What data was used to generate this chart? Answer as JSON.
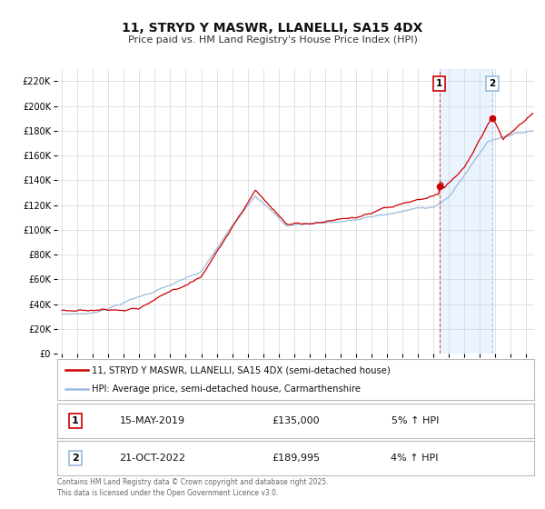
{
  "title": "11, STRYD Y MASWR, LLANELLI, SA15 4DX",
  "subtitle": "Price paid vs. HM Land Registry's House Price Index (HPI)",
  "legend_property": "11, STRYD Y MASWR, LLANELLI, SA15 4DX (semi-detached house)",
  "legend_hpi": "HPI: Average price, semi-detached house, Carmarthenshire",
  "property_color": "#cc0000",
  "hpi_color": "#99bbdd",
  "annotation1_date": "15-MAY-2019",
  "annotation1_price": "£135,000",
  "annotation1_hpi": "5% ↑ HPI",
  "annotation1_year": 2019.37,
  "annotation1_value": 135000,
  "annotation2_date": "21-OCT-2022",
  "annotation2_price": "£189,995",
  "annotation2_hpi": "4% ↑ HPI",
  "annotation2_year": 2022.8,
  "annotation2_value": 189995,
  "ylim": [
    0,
    230000
  ],
  "xlim_start": 1994.7,
  "xlim_end": 2025.5,
  "footer": "Contains HM Land Registry data © Crown copyright and database right 2025.\nThis data is licensed under the Open Government Licence v3.0.",
  "background_color": "#ffffff",
  "grid_color": "#cccccc",
  "plot_bg_color": "#ffffff"
}
